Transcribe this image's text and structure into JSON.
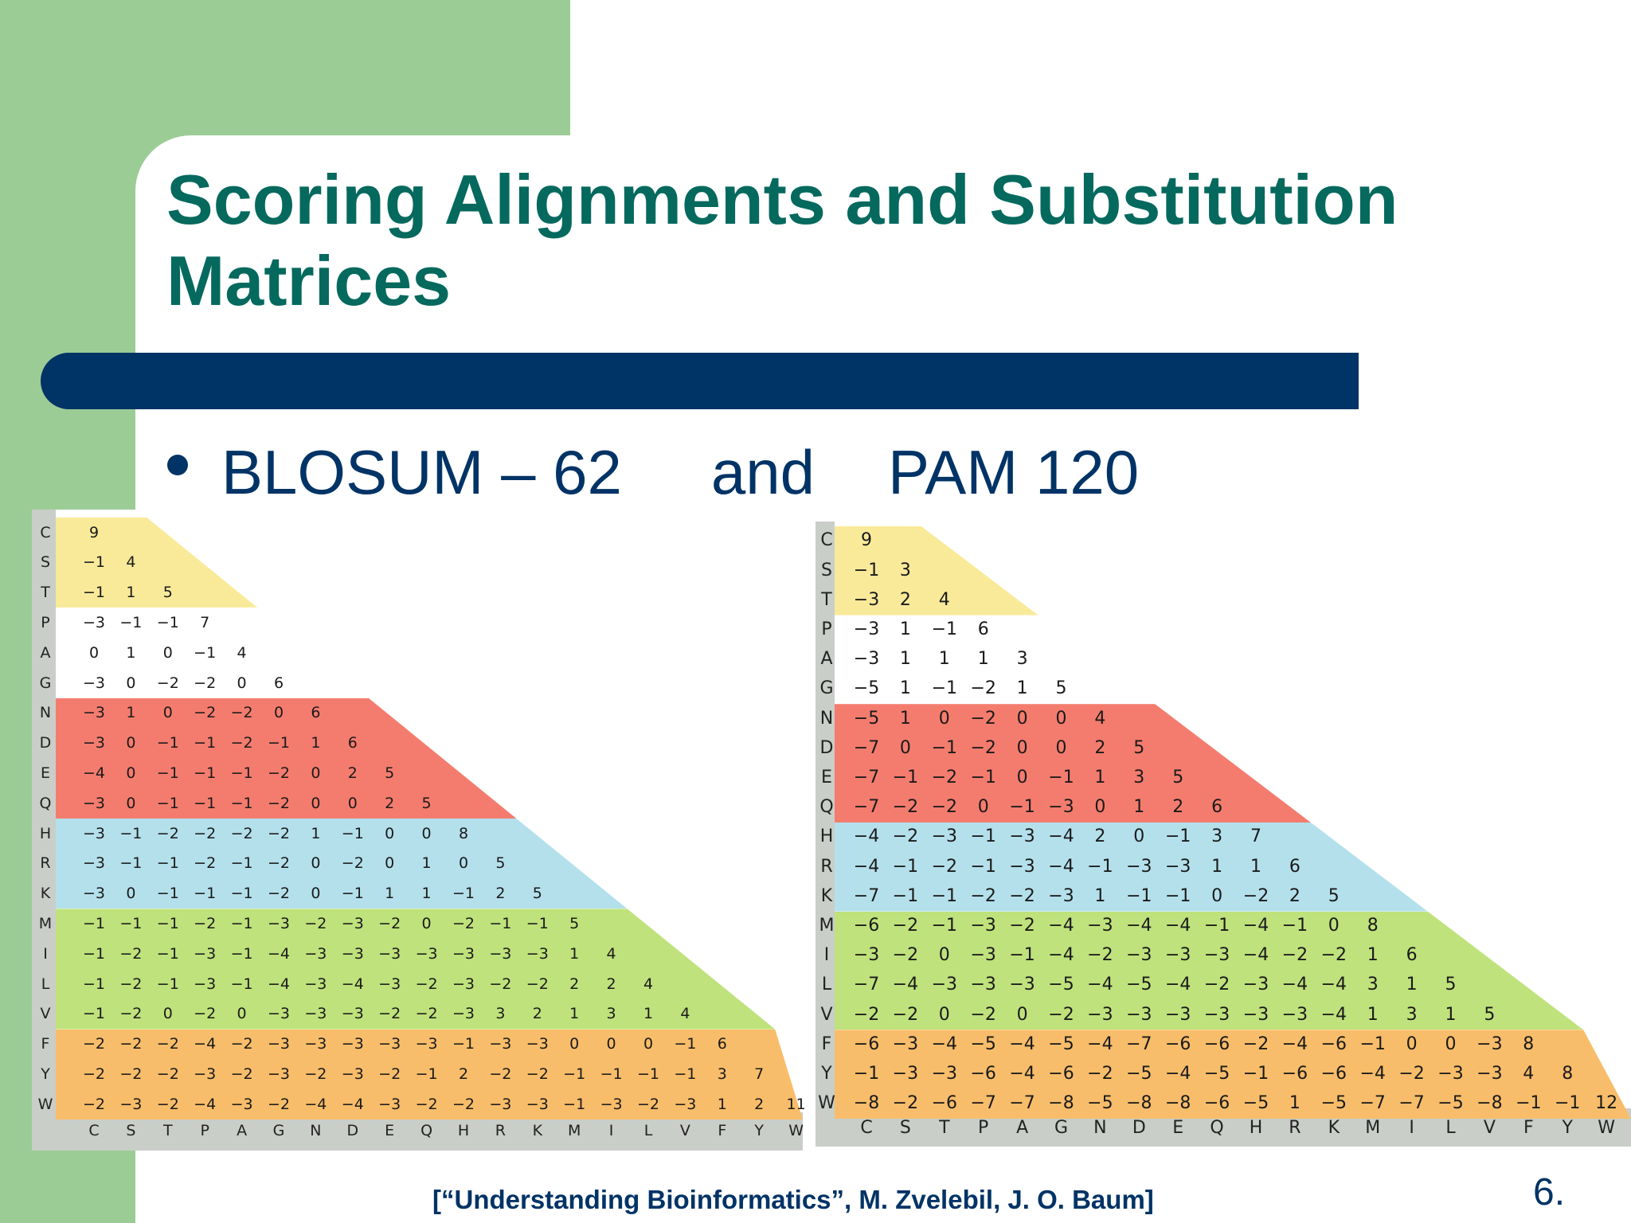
{
  "slide": {
    "title": "Scoring Alignments and Substitution Matrices",
    "bullet": {
      "part1": "BLOSUM – 62",
      "part2": "and",
      "part3": "PAM 120"
    },
    "footer": "[“Understanding Bioinformatics”, M. Zvelebil, J. O. Baum]",
    "page_number": "6."
  },
  "colors": {
    "sidebar_green": "#9ccc96",
    "title_teal": "#05695e",
    "navy": "#003366",
    "band_yellow": "#f9ea9a",
    "band_red": "#f47c6e",
    "band_blue": "#b4e0ec",
    "band_green": "#bfe27c",
    "band_orange": "#f8bd6a",
    "header_gray": "#c9cec9"
  },
  "chart_data": [
    {
      "type": "table",
      "title": "BLOSUM-62",
      "amino_acids": [
        "C",
        "S",
        "T",
        "P",
        "A",
        "G",
        "N",
        "D",
        "E",
        "Q",
        "H",
        "R",
        "K",
        "M",
        "I",
        "L",
        "V",
        "F",
        "Y",
        "W"
      ],
      "groups": [
        {
          "rows": [
            "C",
            "S",
            "T"
          ],
          "color": "yellow"
        },
        {
          "rows": [
            "P",
            "A",
            "G"
          ],
          "color": "white"
        },
        {
          "rows": [
            "N",
            "D",
            "E",
            "Q"
          ],
          "color": "red"
        },
        {
          "rows": [
            "H",
            "R",
            "K"
          ],
          "color": "blue"
        },
        {
          "rows": [
            "M",
            "I",
            "L",
            "V"
          ],
          "color": "green"
        },
        {
          "rows": [
            "F",
            "Y",
            "W"
          ],
          "color": "orange"
        }
      ],
      "rows": [
        [
          "9"
        ],
        [
          "-1",
          "4"
        ],
        [
          "-1",
          "1",
          "5"
        ],
        [
          "-3",
          "-1",
          "-1",
          "7"
        ],
        [
          "0",
          "1",
          "0",
          "-1",
          "4"
        ],
        [
          "-3",
          "0",
          "-2",
          "-2",
          "0",
          "6"
        ],
        [
          "-3",
          "1",
          "0",
          "-2",
          "-2",
          "0",
          "6"
        ],
        [
          "-3",
          "0",
          "-1",
          "-1",
          "-2",
          "-1",
          "1",
          "6"
        ],
        [
          "-4",
          "0",
          "-1",
          "-1",
          "-1",
          "-2",
          "0",
          "2",
          "5"
        ],
        [
          "-3",
          "0",
          "-1",
          "-1",
          "-1",
          "-2",
          "0",
          "0",
          "2",
          "5"
        ],
        [
          "-3",
          "-1",
          "-2",
          "-2",
          "-2",
          "-2",
          "1",
          "-1",
          "0",
          "0",
          "8"
        ],
        [
          "-3",
          "-1",
          "-1",
          "-2",
          "-1",
          "-2",
          "0",
          "-2",
          "0",
          "1",
          "0",
          "5"
        ],
        [
          "-3",
          "0",
          "-1",
          "-1",
          "-1",
          "-2",
          "0",
          "-1",
          "1",
          "1",
          "-1",
          "2",
          "5"
        ],
        [
          "-1",
          "-1",
          "-1",
          "-2",
          "-1",
          "-3",
          "-2",
          "-3",
          "-2",
          "0",
          "-2",
          "-1",
          "-1",
          "5"
        ],
        [
          "-1",
          "-2",
          "-1",
          "-3",
          "-1",
          "-4",
          "-3",
          "-3",
          "-3",
          "-3",
          "-3",
          "-3",
          "-3",
          "1",
          "4"
        ],
        [
          "-1",
          "-2",
          "-1",
          "-3",
          "-1",
          "-4",
          "-3",
          "-4",
          "-3",
          "-2",
          "-3",
          "-2",
          "-2",
          "2",
          "2",
          "4"
        ],
        [
          "-1",
          "-2",
          "0",
          "-2",
          "0",
          "-3",
          "-3",
          "-3",
          "-2",
          "-2",
          "-3",
          "3",
          "2",
          "1",
          "3",
          "1",
          "4"
        ],
        [
          "-2",
          "-2",
          "-2",
          "-4",
          "-2",
          "-3",
          "-3",
          "-3",
          "-3",
          "-3",
          "-1",
          "-3",
          "-3",
          "0",
          "0",
          "0",
          "-1",
          "6"
        ],
        [
          "-2",
          "-2",
          "-2",
          "-3",
          "-2",
          "-3",
          "-2",
          "-3",
          "-2",
          "-1",
          "2",
          "-2",
          "-2",
          "-1",
          "-1",
          "-1",
          "-1",
          "3",
          "7"
        ],
        [
          "-2",
          "-3",
          "-2",
          "-4",
          "-3",
          "-2",
          "-4",
          "-4",
          "-3",
          "-2",
          "-2",
          "-3",
          "-3",
          "-1",
          "-3",
          "-2",
          "-3",
          "1",
          "2",
          "11"
        ]
      ]
    },
    {
      "type": "table",
      "title": "PAM 120",
      "amino_acids": [
        "C",
        "S",
        "T",
        "P",
        "A",
        "G",
        "N",
        "D",
        "E",
        "Q",
        "H",
        "R",
        "K",
        "M",
        "I",
        "L",
        "V",
        "F",
        "Y",
        "W"
      ],
      "groups": [
        {
          "rows": [
            "C",
            "S",
            "T"
          ],
          "color": "yellow"
        },
        {
          "rows": [
            "P",
            "A",
            "G"
          ],
          "color": "white"
        },
        {
          "rows": [
            "N",
            "D",
            "E",
            "Q"
          ],
          "color": "red"
        },
        {
          "rows": [
            "H",
            "R",
            "K"
          ],
          "color": "blue"
        },
        {
          "rows": [
            "M",
            "I",
            "L",
            "V"
          ],
          "color": "green"
        },
        {
          "rows": [
            "F",
            "Y",
            "W"
          ],
          "color": "orange"
        }
      ],
      "rows": [
        [
          "9"
        ],
        [
          "-1",
          "3"
        ],
        [
          "-3",
          "2",
          "4"
        ],
        [
          "-3",
          "1",
          "-1",
          "6"
        ],
        [
          "-3",
          "1",
          "1",
          "1",
          "3"
        ],
        [
          "-5",
          "1",
          "-1",
          "-2",
          "1",
          "5"
        ],
        [
          "-5",
          "1",
          "0",
          "-2",
          "0",
          "0",
          "4"
        ],
        [
          "-7",
          "0",
          "-1",
          "-2",
          "0",
          "0",
          "2",
          "5"
        ],
        [
          "-7",
          "-1",
          "-2",
          "-1",
          "0",
          "-1",
          "1",
          "3",
          "5"
        ],
        [
          "-7",
          "-2",
          "-2",
          "0",
          "-1",
          "-3",
          "0",
          "1",
          "2",
          "6"
        ],
        [
          "-4",
          "-2",
          "-3",
          "-1",
          "-3",
          "-4",
          "2",
          "0",
          "-1",
          "3",
          "7"
        ],
        [
          "-4",
          "-1",
          "-2",
          "-1",
          "-3",
          "-4",
          "-1",
          "-3",
          "-3",
          "1",
          "1",
          "6"
        ],
        [
          "-7",
          "-1",
          "-1",
          "-2",
          "-2",
          "-3",
          "1",
          "-1",
          "-1",
          "0",
          "-2",
          "2",
          "5"
        ],
        [
          "-6",
          "-2",
          "-1",
          "-3",
          "-2",
          "-4",
          "-3",
          "-4",
          "-4",
          "-1",
          "-4",
          "-1",
          "0",
          "8"
        ],
        [
          "-3",
          "-2",
          "0",
          "-3",
          "-1",
          "-4",
          "-2",
          "-3",
          "-3",
          "-3",
          "-4",
          "-2",
          "-2",
          "1",
          "6"
        ],
        [
          "-7",
          "-4",
          "-3",
          "-3",
          "-3",
          "-5",
          "-4",
          "-5",
          "-4",
          "-2",
          "-3",
          "-4",
          "-4",
          "3",
          "1",
          "5"
        ],
        [
          "-2",
          "-2",
          "0",
          "-2",
          "0",
          "-2",
          "-3",
          "-3",
          "-3",
          "-3",
          "-3",
          "-3",
          "-4",
          "1",
          "3",
          "1",
          "5"
        ],
        [
          "-6",
          "-3",
          "-4",
          "-5",
          "-4",
          "-5",
          "-4",
          "-7",
          "-6",
          "-6",
          "-2",
          "-4",
          "-6",
          "-1",
          "0",
          "0",
          "-3",
          "8"
        ],
        [
          "-1",
          "-3",
          "-3",
          "-6",
          "-4",
          "-6",
          "-2",
          "-5",
          "-4",
          "-5",
          "-1",
          "-6",
          "-6",
          "-4",
          "-2",
          "-3",
          "-3",
          "4",
          "8"
        ],
        [
          "-8",
          "-2",
          "-6",
          "-7",
          "-7",
          "-8",
          "-5",
          "-8",
          "-8",
          "-6",
          "-5",
          "1",
          "-5",
          "-7",
          "-7",
          "-5",
          "-8",
          "-1",
          "-1",
          "12"
        ]
      ]
    }
  ]
}
